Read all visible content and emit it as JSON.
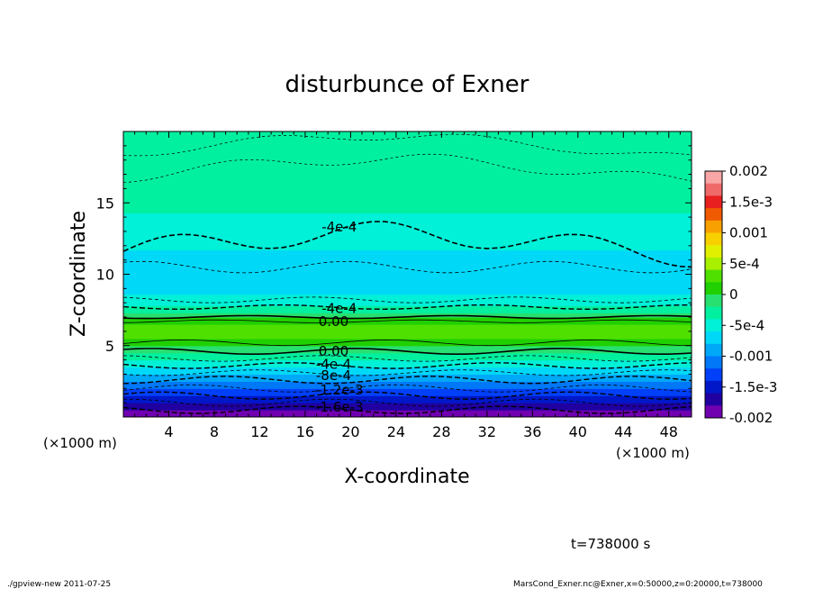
{
  "chart_data": {
    "type": "heatmap",
    "title": "disturbunce of Exner",
    "xlabel": "X-coordinate",
    "ylabel": "Z-coordinate",
    "x_unit": "(×1000 m)",
    "xlim": [
      0,
      50
    ],
    "ylim": [
      0,
      20
    ],
    "x_ticks": [
      "4",
      "8",
      "12",
      "16",
      "20",
      "24",
      "28",
      "32",
      "36",
      "40",
      "44",
      "48"
    ],
    "y_ticks": [
      "5",
      "10",
      "15"
    ],
    "colorbar": {
      "range": [
        -0.002,
        0.002
      ],
      "labels": [
        "0.002",
        "1.5e-3",
        "0.001",
        "5e-4",
        "0",
        "-5e-4",
        "-0.001",
        "-1.5e-3",
        "-0.002"
      ],
      "colors": [
        "#f8a6a6",
        "#f06a6a",
        "#e82020",
        "#f05a00",
        "#f8a000",
        "#f8d000",
        "#e0f000",
        "#a8f000",
        "#50e000",
        "#20d000",
        "#28e070",
        "#00f0a0",
        "#00f0d8",
        "#00d8f8",
        "#00a8f8",
        "#0078f8",
        "#0040f8",
        "#0018c8",
        "#2000a0",
        "#7000b0"
      ]
    },
    "field_profile": {
      "z": [
        0,
        0.5,
        1,
        1.5,
        2,
        2.5,
        3,
        3.5,
        4,
        4.5,
        5,
        5.5,
        6,
        6.5,
        7,
        7.5,
        8,
        8.5,
        9,
        10,
        11,
        12,
        13,
        14,
        15,
        16,
        17,
        18,
        19,
        20
      ],
      "value": [
        -0.002,
        -0.0018,
        -0.0016,
        -0.0014,
        -0.0012,
        -0.001,
        -0.0008,
        -0.0006,
        -0.0004,
        -0.0002,
        0.0,
        0.0002,
        0.0004,
        0.0002,
        0.0,
        -0.0003,
        -0.0005,
        -0.00058,
        -0.00065,
        -0.00068,
        -0.00064,
        -0.00058,
        -0.0005,
        -0.00042,
        -0.00035,
        -0.0003,
        -0.00026,
        -0.00024,
        -0.00022,
        -0.0002
      ]
    },
    "contour_labels": [
      "-4e-4",
      "-4e-4",
      "0.00",
      "0.00",
      "-4e-4",
      "-8e-4",
      "-1.2e-3",
      "-1.6e-3"
    ]
  },
  "annotations": {
    "time": "t=738000 s",
    "footer_left": "./gpview-new   2011-07-25",
    "footer_right": "MarsCond_Exner.nc@Exner,x=0:50000,z=0:20000,t=738000"
  }
}
